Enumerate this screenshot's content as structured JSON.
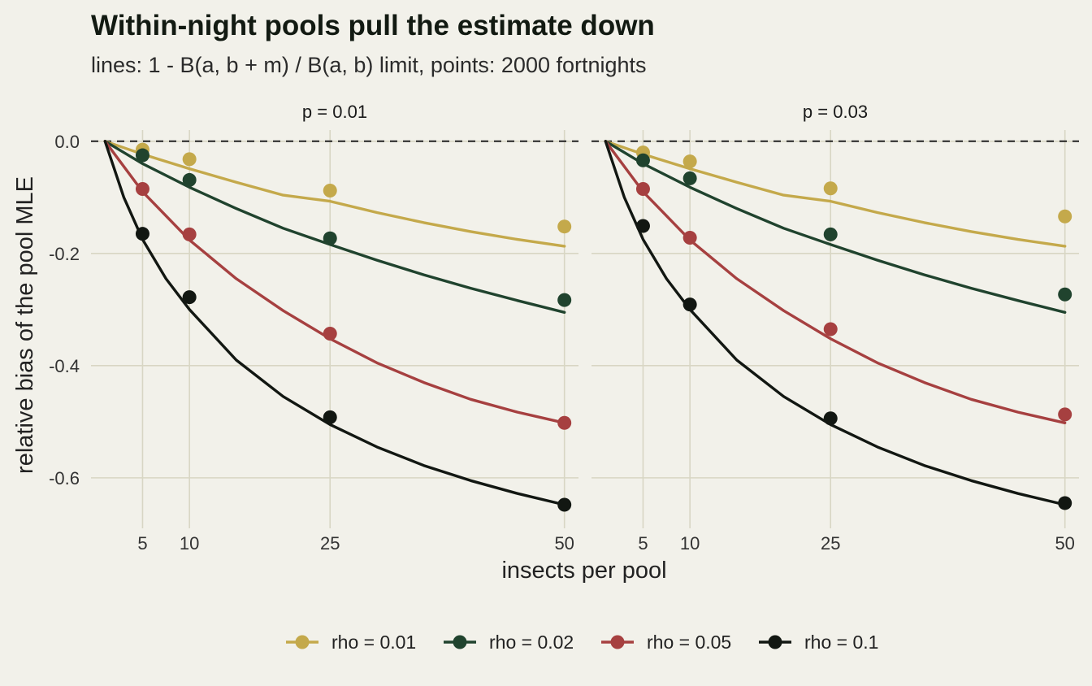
{
  "chart_data": {
    "type": "line",
    "title": "Within-night pools pull the estimate down",
    "subtitle": "lines: 1 - B(a, b + m) / B(a, b) limit, points: 2000 fortnights",
    "xlabel": "insects per pool",
    "ylabel": "relative bias of the pool MLE",
    "x_ticks": [
      5,
      10,
      25,
      50
    ],
    "y_ticks": [
      0.0,
      -0.2,
      -0.4,
      -0.6
    ],
    "y_tick_labels": [
      "0.0",
      "-0.2",
      "-0.4",
      "-0.6"
    ],
    "xlim": [
      -0.5,
      51.5
    ],
    "ylim": [
      -0.69,
      0.02
    ],
    "grid": true,
    "reference_line": {
      "y": 0,
      "style": "dashed"
    },
    "legend_position": "bottom",
    "series_colors": {
      "rho = 0.01": "#c4a94b",
      "rho = 0.02": "#20432e",
      "rho = 0.05": "#a64040",
      "rho = 0.1": "#121712"
    },
    "panels": [
      {
        "label": "p = 0.01",
        "points": [
          {
            "series": "rho = 0.01",
            "x": [
              5,
              10,
              25,
              50
            ],
            "y": [
              -0.015,
              -0.032,
              -0.088,
              -0.152
            ]
          },
          {
            "series": "rho = 0.02",
            "x": [
              5,
              10,
              25,
              50
            ],
            "y": [
              -0.025,
              -0.069,
              -0.173,
              -0.283
            ]
          },
          {
            "series": "rho = 0.05",
            "x": [
              5,
              10,
              25,
              50
            ],
            "y": [
              -0.085,
              -0.166,
              -0.343,
              -0.502
            ]
          },
          {
            "series": "rho = 0.1",
            "x": [
              5,
              10,
              25,
              50
            ],
            "y": [
              -0.165,
              -0.278,
              -0.492,
              -0.648
            ]
          }
        ]
      },
      {
        "label": "p = 0.03",
        "points": [
          {
            "series": "rho = 0.01",
            "x": [
              5,
              10,
              25,
              50
            ],
            "y": [
              -0.02,
              -0.036,
              -0.084,
              -0.134
            ]
          },
          {
            "series": "rho = 0.02",
            "x": [
              5,
              10,
              25,
              50
            ],
            "y": [
              -0.034,
              -0.066,
              -0.166,
              -0.273
            ]
          },
          {
            "series": "rho = 0.05",
            "x": [
              5,
              10,
              25,
              50
            ],
            "y": [
              -0.085,
              -0.172,
              -0.335,
              -0.487
            ]
          },
          {
            "series": "rho = 0.1",
            "x": [
              5,
              10,
              25,
              50
            ],
            "y": [
              -0.151,
              -0.291,
              -0.494,
              -0.645
            ]
          }
        ]
      }
    ],
    "limit_curves": [
      {
        "series": "rho = 0.01",
        "x": [
          1,
          5,
          10,
          15,
          20,
          25,
          30,
          35,
          40,
          45,
          50
        ],
        "y": [
          0.0,
          -0.023,
          -0.049,
          -0.073,
          -0.096,
          -0.107,
          -0.127,
          -0.145,
          -0.161,
          -0.175,
          -0.187
        ]
      },
      {
        "series": "rho = 0.02",
        "x": [
          1,
          5,
          10,
          15,
          20,
          25,
          30,
          35,
          40,
          45,
          50
        ],
        "y": [
          0.0,
          -0.04,
          -0.082,
          -0.12,
          -0.155,
          -0.184,
          -0.212,
          -0.238,
          -0.262,
          -0.284,
          -0.305
        ]
      },
      {
        "series": "rho = 0.05",
        "x": [
          1,
          5,
          10,
          15,
          20,
          25,
          30,
          35,
          40,
          45,
          50
        ],
        "y": [
          0.0,
          -0.09,
          -0.176,
          -0.245,
          -0.302,
          -0.352,
          -0.395,
          -0.43,
          -0.46,
          -0.483,
          -0.502
        ]
      },
      {
        "series": "rho = 0.1",
        "x": [
          1,
          3,
          5,
          7.5,
          10,
          15,
          20,
          25,
          30,
          35,
          40,
          45,
          50
        ],
        "y": [
          0.0,
          -0.1,
          -0.175,
          -0.245,
          -0.3,
          -0.39,
          -0.455,
          -0.505,
          -0.545,
          -0.578,
          -0.605,
          -0.628,
          -0.648
        ]
      }
    ],
    "legend": [
      "rho = 0.01",
      "rho = 0.02",
      "rho = 0.05",
      "rho = 0.1"
    ]
  }
}
